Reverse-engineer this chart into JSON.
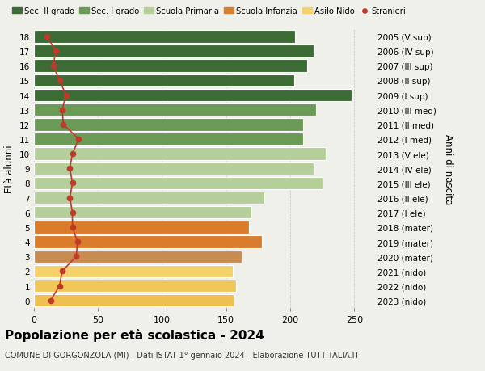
{
  "ages": [
    18,
    17,
    16,
    15,
    14,
    13,
    12,
    11,
    10,
    9,
    8,
    7,
    6,
    5,
    4,
    3,
    2,
    1,
    0
  ],
  "right_labels": [
    "2005 (V sup)",
    "2006 (IV sup)",
    "2007 (III sup)",
    "2008 (II sup)",
    "2009 (I sup)",
    "2010 (III med)",
    "2011 (II med)",
    "2012 (I med)",
    "2013 (V ele)",
    "2014 (IV ele)",
    "2015 (III ele)",
    "2016 (II ele)",
    "2017 (I ele)",
    "2018 (mater)",
    "2019 (mater)",
    "2020 (mater)",
    "2021 (nido)",
    "2022 (nido)",
    "2023 (nido)"
  ],
  "bar_values": [
    204,
    218,
    213,
    203,
    248,
    220,
    210,
    210,
    228,
    218,
    225,
    180,
    170,
    168,
    178,
    162,
    155,
    158,
    156
  ],
  "bar_colors": [
    "#3d6b35",
    "#3d6b35",
    "#3d6b35",
    "#3d6b35",
    "#3d6b35",
    "#6a9a55",
    "#6a9a55",
    "#6a9a55",
    "#b5cf9a",
    "#b5cf9a",
    "#b5cf9a",
    "#b5cf9a",
    "#b5cf9a",
    "#d97c2b",
    "#d97c2b",
    "#c88c50",
    "#f5d06b",
    "#f0c85a",
    "#edc050"
  ],
  "stranieri_values": [
    10,
    17,
    15,
    20,
    25,
    22,
    23,
    35,
    30,
    28,
    30,
    28,
    30,
    30,
    34,
    33,
    22,
    20,
    13
  ],
  "legend_labels": [
    "Sec. II grado",
    "Sec. I grado",
    "Scuola Primaria",
    "Scuola Infanzia",
    "Asilo Nido",
    "Stranieri"
  ],
  "legend_colors": [
    "#3d6b35",
    "#6a9a55",
    "#b5cf9a",
    "#d97c2b",
    "#f5d06b",
    "#c0392b"
  ],
  "stranieri_color": "#c0392b",
  "title": "Popolazione per età scolastica - 2024",
  "subtitle": "COMUNE DI GORGONZOLA (MI) - Dati ISTAT 1° gennaio 2024 - Elaborazione TUTTITALIA.IT",
  "ylabel_left": "Età alunni",
  "ylabel_right": "Anni di nascita",
  "xlim": [
    0,
    265
  ],
  "background_color": "#f0f0eb"
}
